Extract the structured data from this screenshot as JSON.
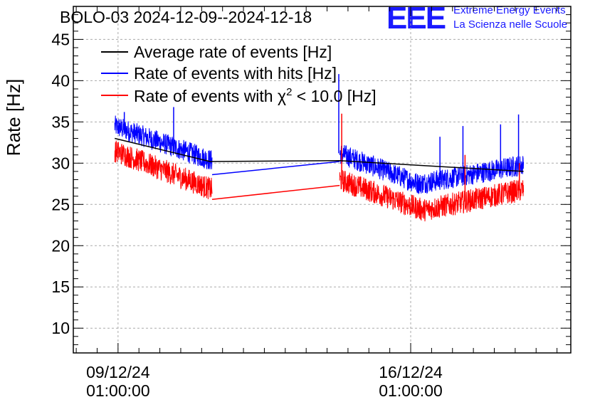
{
  "chart_data": {
    "type": "line",
    "title": "BOLO-03 2024-12-09--2024-12-18",
    "xlabel": "",
    "ylabel": "Rate [Hz]",
    "ylim": [
      7,
      49
    ],
    "yticks": [
      10,
      15,
      20,
      25,
      30,
      35,
      40,
      45
    ],
    "xticks": [
      {
        "x": 0.0,
        "date": "09/12/24",
        "time": "01:00:00"
      },
      {
        "x": 7.0,
        "date": "16/12/24",
        "time": "01:00:00"
      }
    ],
    "xlim": [
      -1.07,
      10.83
    ],
    "x_units": "days since 09/12/24 01:00:00",
    "grid": true,
    "legend_position": "top-left",
    "series": [
      {
        "name": "Average rate of events [Hz]",
        "color": "#000000",
        "points": [
          [
            -0.08,
            33.0
          ],
          [
            2.2,
            30.2
          ],
          [
            5.3,
            30.3
          ],
          [
            9.7,
            29.0
          ]
        ]
      },
      {
        "name": "Rate of events with hits [Hz]",
        "color": "#0000ff",
        "segments": [
          {
            "x": [
              -0.08,
              2.25
            ],
            "y": [
              34.5,
              30.3
            ]
          },
          {
            "x": [
              5.3,
              7.2
            ],
            "y": [
              31.2,
              27.5
            ]
          },
          {
            "x": [
              7.2,
              9.7
            ],
            "y": [
              27.5,
              29.8
            ]
          }
        ],
        "noise": 1.3,
        "spikes": [
          [
            1.33,
            36.8
          ],
          [
            5.28,
            40.8
          ],
          [
            7.7,
            33.2
          ],
          [
            8.25,
            34.5
          ],
          [
            9.15,
            34.7
          ],
          [
            9.58,
            35.9
          ],
          [
            0.15,
            36.2
          ]
        ],
        "gap_line": [
          [
            2.25,
            28.6
          ],
          [
            5.3,
            30.2
          ]
        ]
      },
      {
        "name": "Rate of events with χ² < 10.0 [Hz]",
        "color": "#ff0000",
        "segments": [
          {
            "x": [
              -0.08,
              2.25
            ],
            "y": [
              31.5,
              26.8
            ]
          },
          {
            "x": [
              5.3,
              7.3
            ],
            "y": [
              28.0,
              24.3
            ]
          },
          {
            "x": [
              7.3,
              9.7
            ],
            "y": [
              24.3,
              26.8
            ]
          }
        ],
        "noise": 1.4,
        "spikes": [
          [
            5.35,
            36.0
          ],
          [
            8.3,
            31.0
          ],
          [
            9.6,
            30.0
          ]
        ],
        "gap_line": [
          [
            2.25,
            25.6
          ],
          [
            5.3,
            27.3
          ]
        ]
      }
    ]
  },
  "legend": {
    "label_black": "Average rate of events [Hz]",
    "label_blue": "Rate of events with hits [Hz]",
    "label_red_prefix": "Rate of events with χ",
    "label_red_sup": "2",
    "label_red_suffix": " < 10.0 [Hz]"
  },
  "logo": {
    "mark": "EEE",
    "line1": "Extreme Energy Events",
    "line2": "La Scienza nelle Scuole"
  }
}
